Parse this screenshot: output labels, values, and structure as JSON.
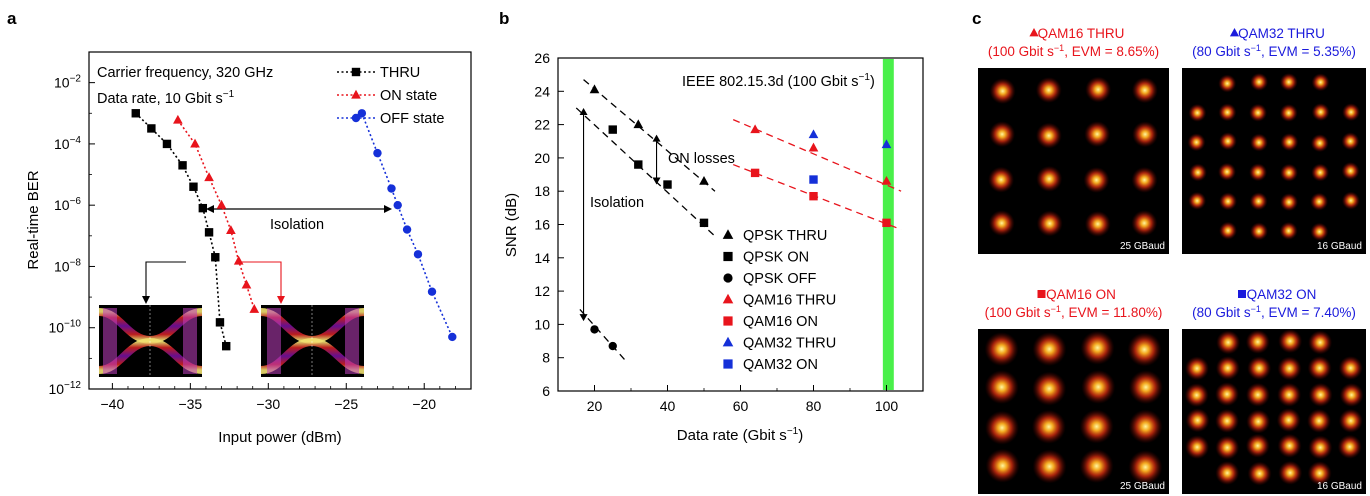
{
  "panels": {
    "a": "a",
    "b": "b",
    "c": "c"
  },
  "colors": {
    "thru": "#000000",
    "on": "#e8141c",
    "off": "#1530d8",
    "green_band": "#49f04a",
    "blue_label": "#1a1adc",
    "red_label": "#e8141c"
  },
  "chart_data": [
    {
      "type": "line",
      "panel": "a",
      "title": "",
      "xlabel": "Input power (dBm)",
      "ylabel": "Real-time BER",
      "xlim": [
        -41.5,
        -17
      ],
      "ylim_log10": [
        -12,
        -1
      ],
      "y_scale": "log",
      "x_ticks": [
        "−40",
        "−35",
        "−30",
        "−25",
        "−20"
      ],
      "y_ticks": [
        {
          "base": "10",
          "exp": "−2"
        },
        {
          "base": "10",
          "exp": "−4"
        },
        {
          "base": "10",
          "exp": "−6"
        },
        {
          "base": "10",
          "exp": "−8"
        },
        {
          "base": "10",
          "exp": "−10"
        },
        {
          "base": "10",
          "exp": "−12"
        }
      ],
      "annotations": {
        "carrier": "Carrier frequency, 320 GHz",
        "rate_prefix": "Data rate, 10 Gbit s",
        "rate_exp": "−1",
        "isolation": "Isolation"
      },
      "legend_placement": "top-right",
      "series": [
        {
          "name": "THRU",
          "marker": "square",
          "color": "#000000",
          "x": [
            -38.5,
            -37.5,
            -36.5,
            -35.5,
            -34.8,
            -34.2,
            -33.8,
            -33.4,
            -33.1,
            -32.7
          ],
          "y": [
            0.001,
            0.00032,
            0.0001,
            2e-05,
            4e-06,
            8e-07,
            1.3e-07,
            2e-08,
            1.5e-10,
            2.5e-11
          ]
        },
        {
          "name": "ON state",
          "marker": "triangle",
          "color": "#e8141c",
          "x": [
            -35.8,
            -34.7,
            -33.8,
            -33.0,
            -32.4,
            -31.9,
            -31.4,
            -30.9
          ],
          "y": [
            0.0006,
            0.0001,
            8e-06,
            1e-06,
            1.5e-07,
            1.5e-08,
            2.5e-09,
            4e-10
          ]
        },
        {
          "name": "OFF state",
          "marker": "circle",
          "color": "#1530d8",
          "x": [
            -24.0,
            -23.0,
            -22.1,
            -21.7,
            -21.1,
            -20.4,
            -19.5,
            -18.2
          ],
          "y": [
            0.001,
            5e-05,
            3.5e-06,
            1e-06,
            1.6e-07,
            2.5e-08,
            1.5e-09,
            5e-11
          ]
        }
      ]
    },
    {
      "type": "scatter",
      "panel": "b",
      "title": "",
      "xlabel_prefix": "Data rate (Gbit s",
      "xlabel_exp": "−1",
      "xlabel_suffix": ")",
      "ylabel": "SNR (dB)",
      "xlim": [
        10,
        110
      ],
      "ylim": [
        6,
        26
      ],
      "x_ticks": [
        20,
        40,
        60,
        80,
        100
      ],
      "y_ticks": [
        6,
        8,
        10,
        12,
        14,
        16,
        18,
        20,
        22,
        24,
        26
      ],
      "annotations": {
        "ieee_prefix": "IEEE 802.15.3d (100 Gbit s",
        "ieee_exp": "−1",
        "ieee_suffix": ")",
        "on_losses": "ON losses",
        "isolation": "Isolation"
      },
      "band_x": [
        99,
        102
      ],
      "legend_placement": "bottom-right",
      "series": [
        {
          "name": "QPSK THRU",
          "marker": "triangle",
          "color": "#000000",
          "x": [
            20,
            32,
            50
          ],
          "y": [
            24.1,
            22.0,
            18.6
          ]
        },
        {
          "name": "QPSK ON",
          "marker": "square",
          "color": "#000000",
          "x": [
            25,
            32,
            40,
            50
          ],
          "y": [
            21.7,
            19.6,
            18.4,
            16.1
          ]
        },
        {
          "name": "QPSK OFF",
          "marker": "circle",
          "color": "#000000",
          "x": [
            20,
            25
          ],
          "y": [
            9.7,
            8.7
          ]
        },
        {
          "name": "QAM16 THRU",
          "marker": "triangle",
          "color": "#e8141c",
          "x": [
            64,
            80,
            100
          ],
          "y": [
            21.7,
            20.6,
            18.6
          ]
        },
        {
          "name": "QAM16 ON",
          "marker": "square",
          "color": "#e8141c",
          "x": [
            64,
            80,
            100
          ],
          "y": [
            19.1,
            17.7,
            16.1
          ]
        },
        {
          "name": "QAM32 THRU",
          "marker": "triangle",
          "color": "#1530d8",
          "x": [
            80,
            100
          ],
          "y": [
            21.4,
            20.8
          ]
        },
        {
          "name": "QAM32 ON",
          "marker": "square",
          "color": "#1530d8",
          "x": [
            80
          ],
          "y": [
            18.7
          ]
        }
      ],
      "fits": [
        {
          "color": "#000000",
          "x": [
            17,
            53
          ],
          "y": [
            24.7,
            18.0
          ]
        },
        {
          "color": "#000000",
          "x": [
            15,
            53
          ],
          "y": [
            23.0,
            15.3
          ]
        },
        {
          "color": "#000000",
          "x": [
            16,
            29
          ],
          "y": [
            10.9,
            7.7
          ]
        },
        {
          "color": "#e8141c",
          "x": [
            58,
            104
          ],
          "y": [
            22.3,
            18.0
          ]
        },
        {
          "color": "#e8141c",
          "x": [
            58,
            104
          ],
          "y": [
            19.6,
            15.7
          ]
        }
      ]
    }
  ],
  "constellations": [
    {
      "title": "QAM16 THRU",
      "sub_prefix": "(100 Gbit s",
      "sub_exp": "−1",
      "sub_suffix": ", EVM = 8.65%)",
      "color": "#e8141c",
      "baud": "25 GBaud",
      "marker": "triangle",
      "points": 16
    },
    {
      "title": "QAM32 THRU",
      "sub_prefix": "(80 Gbit s",
      "sub_exp": "−1",
      "sub_suffix": ", EVM = 5.35%)",
      "color": "#1a1adc",
      "baud": "16 GBaud",
      "marker": "triangle",
      "points": 32
    },
    {
      "title": "QAM16 ON",
      "sub_prefix": "(100 Gbit s",
      "sub_exp": "−1",
      "sub_suffix": ", EVM = 11.80%)",
      "color": "#e8141c",
      "baud": "25 GBaud",
      "marker": "square",
      "points": 16
    },
    {
      "title": "QAM32 ON",
      "sub_prefix": "(80 Gbit s",
      "sub_exp": "−1",
      "sub_suffix": ", EVM = 7.40%)",
      "color": "#1a1adc",
      "baud": "16 GBaud",
      "marker": "square",
      "points": 32
    }
  ]
}
